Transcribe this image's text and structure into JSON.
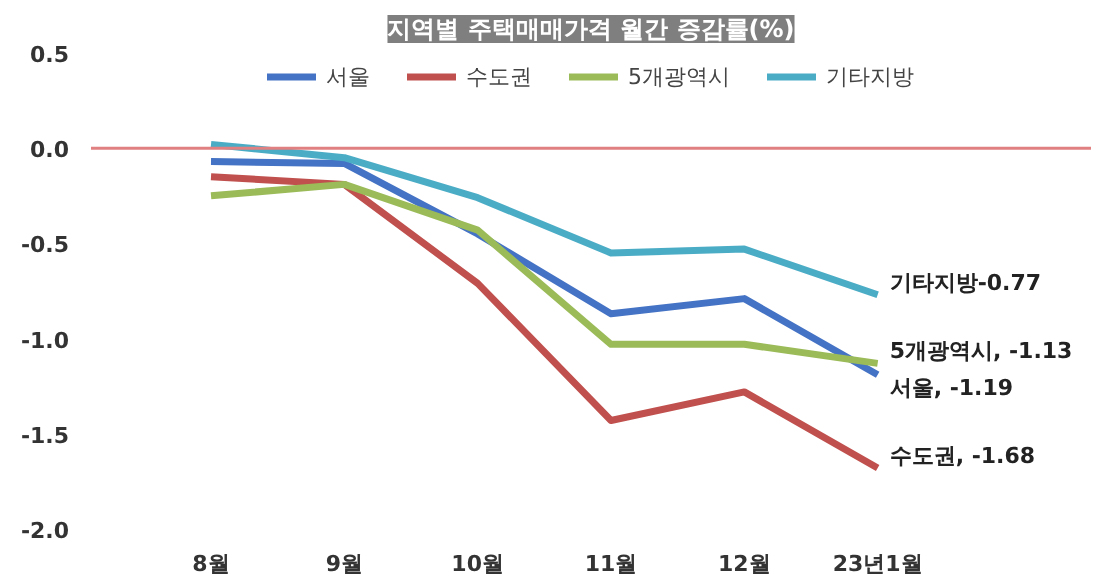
{
  "chart_data": {
    "type": "line",
    "title": "지역별 주택매매가격 월간 증감률(%)",
    "categories": [
      "8월",
      "9월",
      "10월",
      "11월",
      "12월",
      "23년1월"
    ],
    "series": [
      {
        "name": "서울",
        "color": "#4472c4",
        "values": [
          -0.07,
          -0.08,
          -0.45,
          -0.87,
          -0.79,
          -1.19
        ]
      },
      {
        "name": "수도권",
        "color": "#c0504d",
        "values": [
          -0.15,
          -0.19,
          -0.71,
          -1.43,
          -1.28,
          -1.68
        ]
      },
      {
        "name": "5개광역시",
        "color": "#9bbb59",
        "values": [
          -0.25,
          -0.19,
          -0.43,
          -1.03,
          -1.03,
          -1.13
        ]
      },
      {
        "name": "기타지방",
        "color": "#4bacc6",
        "values": [
          0.02,
          -0.05,
          -0.26,
          -0.55,
          -0.53,
          -0.77
        ]
      }
    ],
    "ylim": [
      -2,
      0.5
    ],
    "yticks": [
      {
        "value": 0.5,
        "label": "0.5"
      },
      {
        "value": 0,
        "label": "0.0"
      },
      {
        "value": -0.5,
        "label": "-0.5"
      },
      {
        "value": -1,
        "label": "-1.0"
      },
      {
        "value": -1.5,
        "label": "-1.5"
      },
      {
        "value": -2,
        "label": "-2.0"
      }
    ],
    "ref_lines": [
      {
        "axis": "y",
        "value": 0,
        "color": "#e08080"
      }
    ],
    "annotations": [
      {
        "text": "기타지방-0.77",
        "x": "23년1월",
        "y": -0.77
      },
      {
        "text": "서울, -1.19",
        "x": "23년1월",
        "y": -1.19
      },
      {
        "text": "5개광역시, -1.13",
        "x": "23년1월",
        "y": -1.13
      },
      {
        "text": "수도권, -1.68",
        "x": "23년1월",
        "y": -1.68
      }
    ],
    "legend": "top",
    "grid": false,
    "marker": "none",
    "line_style": "solid"
  }
}
